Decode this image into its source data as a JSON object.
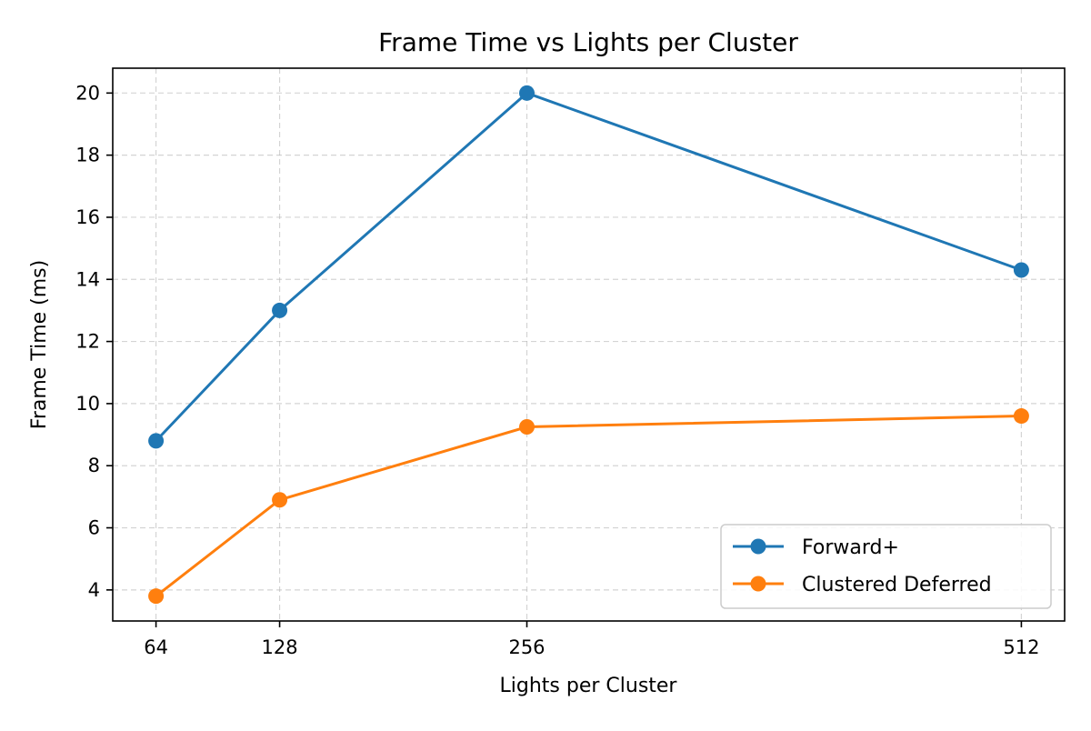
{
  "chart_data": {
    "type": "line",
    "title": "Frame Time vs Lights per Cluster",
    "xlabel": "Lights per Cluster",
    "ylabel": "Frame Time (ms)",
    "x": [
      64,
      128,
      256,
      512
    ],
    "x_tick_labels": [
      "64",
      "128",
      "256",
      "512"
    ],
    "y_ticks": [
      4,
      6,
      8,
      10,
      12,
      14,
      16,
      18,
      20
    ],
    "y_tick_labels": [
      "4",
      "6",
      "8",
      "10",
      "12",
      "14",
      "16",
      "18",
      "20"
    ],
    "xlim": [
      41.6,
      534.4
    ],
    "ylim": [
      3.0,
      20.8
    ],
    "grid": true,
    "legend_position": "lower-right",
    "series": [
      {
        "name": "Forward+",
        "color": "#1f77b4",
        "marker": "circle",
        "values": [
          8.8,
          13.0,
          20.0,
          14.3
        ]
      },
      {
        "name": "Clustered Deferred",
        "color": "#ff7f0e",
        "marker": "circle",
        "values": [
          3.8,
          6.9,
          9.25,
          9.6
        ]
      }
    ]
  }
}
